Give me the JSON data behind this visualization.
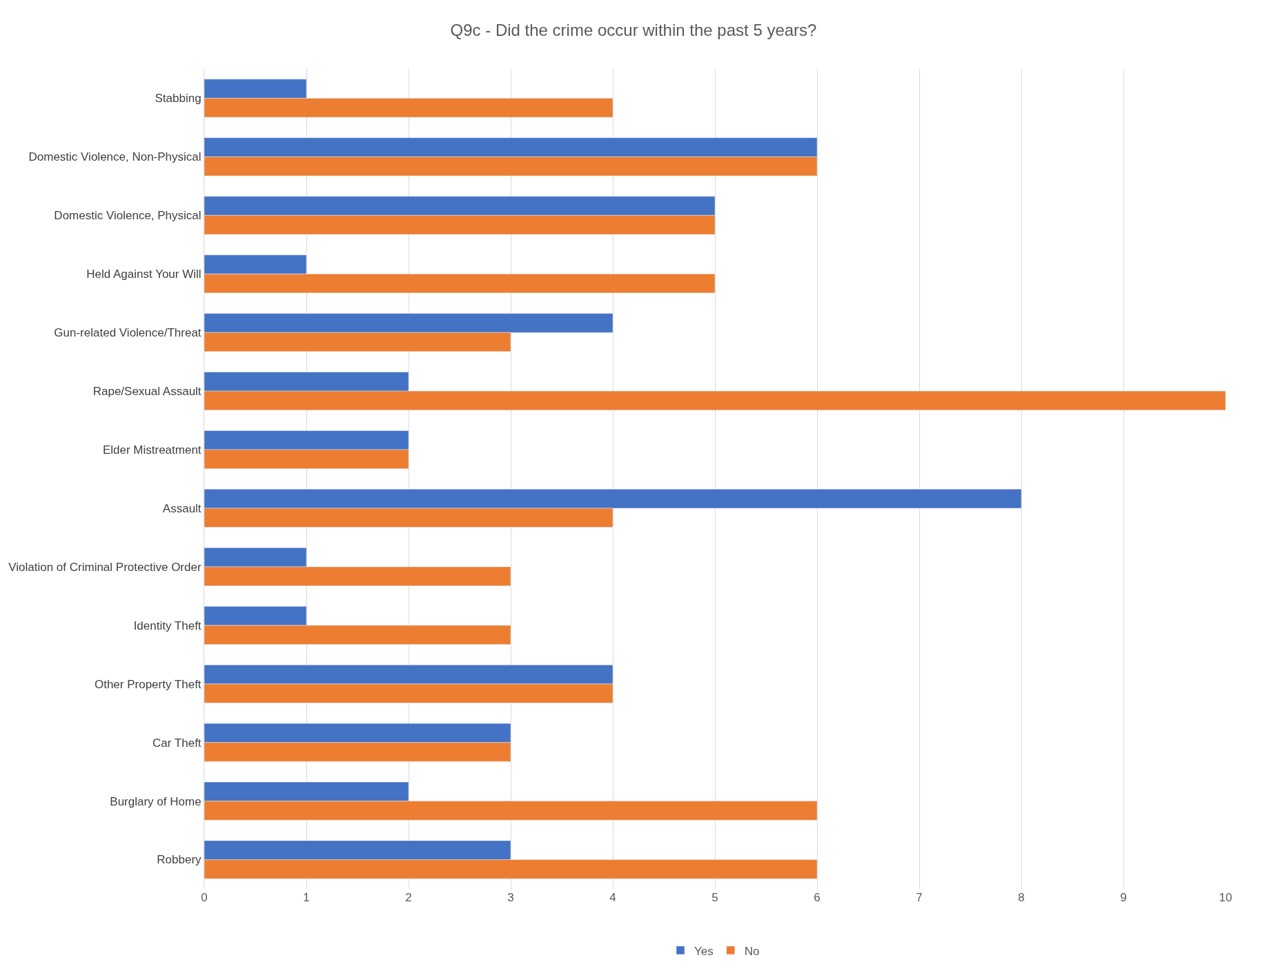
{
  "chart_data": {
    "type": "bar",
    "orientation": "horizontal",
    "title": "Q9c - Did the crime occur within the past 5 years?",
    "categories": [
      "Stabbing",
      "Domestic Violence, Non-Physical",
      "Domestic Violence, Physical",
      "Held Against Your Will",
      "Gun-related Violence/Threat",
      "Rape/Sexual Assault",
      "Elder Mistreatment",
      "Assault",
      "Violation of Criminal Protective Order",
      "Identity Theft",
      "Other Property Theft",
      "Car Theft",
      "Burglary of Home",
      "Robbery"
    ],
    "series": [
      {
        "name": "Yes",
        "color": "#4472c4",
        "values": [
          1,
          6,
          5,
          1,
          4,
          2,
          2,
          8,
          1,
          1,
          4,
          3,
          2,
          3
        ]
      },
      {
        "name": "No",
        "color": "#ed7d31",
        "values": [
          4,
          6,
          5,
          5,
          3,
          10,
          2,
          4,
          3,
          3,
          4,
          3,
          6,
          6
        ]
      }
    ],
    "xlim": [
      0,
      10
    ],
    "xticks": [
      0,
      1,
      2,
      3,
      4,
      5,
      6,
      7,
      8,
      9,
      10
    ],
    "grid": "x",
    "legend": "bottom"
  }
}
